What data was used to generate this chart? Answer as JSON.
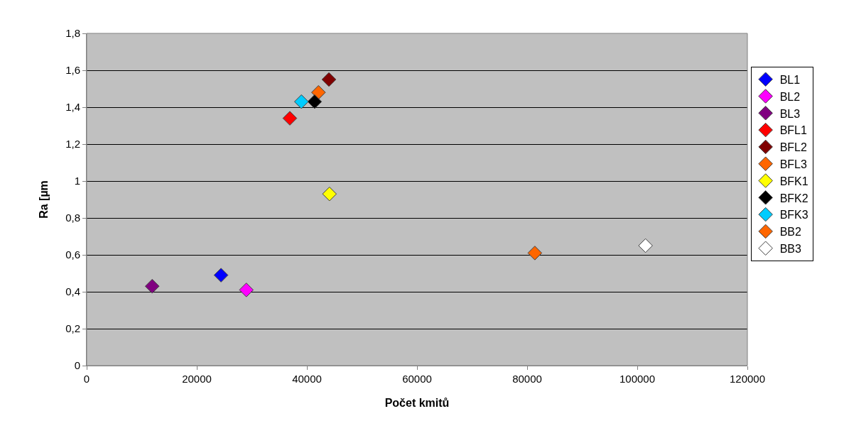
{
  "chart_data": {
    "type": "scatter",
    "xlabel": "Počet kmitů",
    "ylabel": "Ra [µm",
    "marker": "diamond",
    "grid": "y",
    "legend": "right",
    "xlim": [
      0,
      120000
    ],
    "xticks": [
      0,
      20000,
      40000,
      60000,
      80000,
      100000,
      120000
    ],
    "ylim": [
      0,
      1.8
    ],
    "yticks": [
      0,
      {
        "value": 0.2,
        "label": "0,2"
      },
      {
        "value": 0.4,
        "label": "0,4"
      },
      {
        "value": 0.6,
        "label": "0,6"
      },
      {
        "value": 0.8,
        "label": "0,8"
      },
      1,
      {
        "value": 1.2,
        "label": "1,2"
      },
      {
        "value": 1.4,
        "label": "1,4"
      },
      {
        "value": 1.6,
        "label": "1,6"
      },
      {
        "value": 1.8,
        "label": "1,8"
      }
    ],
    "series": [
      {
        "name": "BL1",
        "color": "#0000ff",
        "x": [
          24400
        ],
        "values": [
          0.49
        ]
      },
      {
        "name": "BL2",
        "color": "#ff00ff",
        "x": [
          29000
        ],
        "values": [
          0.41
        ]
      },
      {
        "name": "BL3",
        "color": "#800080",
        "x": [
          11900
        ],
        "values": [
          0.43
        ]
      },
      {
        "name": "BFL1",
        "color": "#ff0000",
        "x": [
          36900
        ],
        "values": [
          1.34
        ]
      },
      {
        "name": "BFL2",
        "color": "#800000",
        "x": [
          44000
        ],
        "values": [
          1.55
        ]
      },
      {
        "name": "BFL3",
        "color": "#ff6600",
        "x": [
          42100
        ],
        "values": [
          1.48
        ]
      },
      {
        "name": "BFK1",
        "color": "#ffff00",
        "x": [
          44100
        ],
        "values": [
          0.93
        ]
      },
      {
        "name": "BFK2",
        "color": "#000000",
        "x": [
          41400
        ],
        "values": [
          1.43
        ]
      },
      {
        "name": "BFK3",
        "color": "#00ccff",
        "x": [
          39000
        ],
        "values": [
          1.43
        ]
      },
      {
        "name": "BB2",
        "color": "#ff6600",
        "x": [
          81400
        ],
        "values": [
          0.61
        ]
      },
      {
        "name": "BB3",
        "color": "#ffffff",
        "x": [
          101500
        ],
        "values": [
          0.65
        ]
      }
    ]
  }
}
